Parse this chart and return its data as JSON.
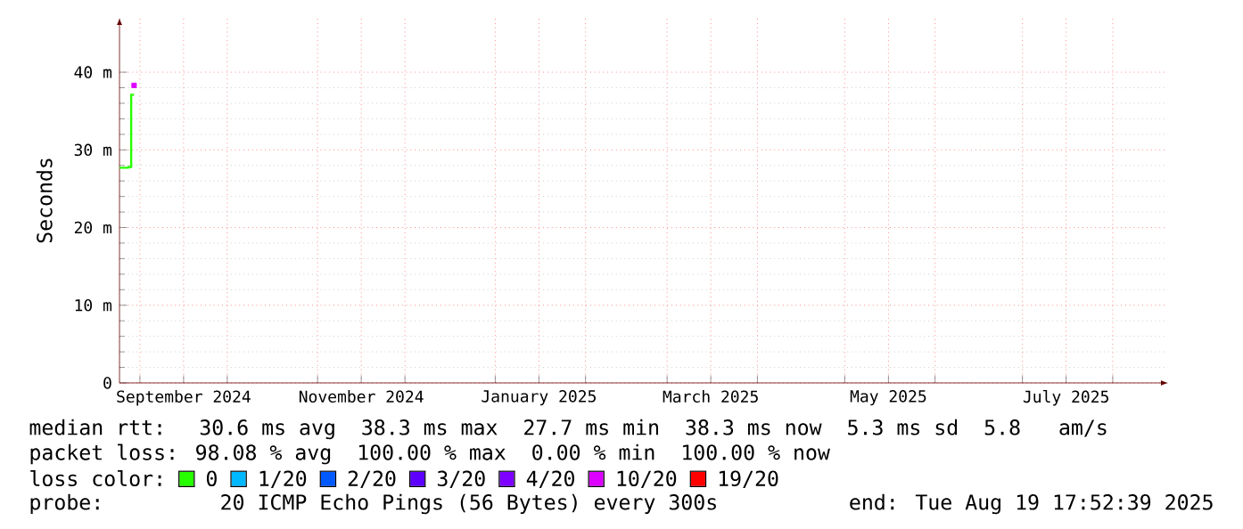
{
  "chart_data": {
    "type": "step",
    "ylabel": "Seconds",
    "legend_title": "loss color:",
    "legend": "bottom",
    "grid": true,
    "xlim": [
      "2024-08-25",
      "2025-08-20"
    ],
    "xticks": [
      {
        "value": "2024-09-01",
        "label": null
      },
      {
        "value": "2024-10-01",
        "label": null
      },
      {
        "value": "2024-11-01",
        "label": null
      },
      {
        "value": "2024-12-01",
        "label": null
      },
      {
        "value": "2025-01-01",
        "label": null
      },
      {
        "value": "2025-02-01",
        "label": null
      },
      {
        "value": "2025-03-01",
        "label": null
      },
      {
        "value": "2025-04-01",
        "label": null
      },
      {
        "value": "2025-05-01",
        "label": null
      },
      {
        "value": "2025-06-01",
        "label": null
      },
      {
        "value": "2025-07-01",
        "label": null
      },
      {
        "value": "2025-08-01",
        "label": null
      },
      {
        "value": "2024-09-16",
        "label": "September 2024"
      },
      {
        "value": "2024-11-16",
        "label": "November 2024"
      },
      {
        "value": "2025-01-16",
        "label": "January 2025"
      },
      {
        "value": "2025-03-16",
        "label": "March 2025"
      },
      {
        "value": "2025-05-16",
        "label": "May 2025"
      },
      {
        "value": "2025-07-16",
        "label": "July 2025"
      }
    ],
    "ylim": [
      0,
      47
    ],
    "yticks": [
      0,
      {
        "value": 10,
        "label": "10 m"
      },
      {
        "value": 20,
        "label": "20 m"
      },
      {
        "value": 30,
        "label": "30 m"
      },
      {
        "value": 40,
        "label": "40 m"
      }
    ],
    "series": [
      {
        "name": "0",
        "color": "#26ff00",
        "x": [
          "2024-08-25",
          "2024-08-28",
          "2024-08-29",
          "2024-08-30"
        ],
        "values": [
          27.7,
          27.8,
          37.1,
          37.1
        ]
      },
      {
        "name": "1/20",
        "color": "#00b8ff"
      },
      {
        "name": "2/20",
        "color": "#0059ff"
      },
      {
        "name": "3/20",
        "color": "#5e00ff"
      },
      {
        "name": "4/20",
        "color": "#7e00ff"
      },
      {
        "name": "10/20",
        "color": "#dd00ff",
        "type": "scatter",
        "marker": "square",
        "x": [
          "2024-08-30"
        ],
        "values": [
          38.3
        ]
      },
      {
        "name": "19/20",
        "color": "#ff0000"
      }
    ],
    "annotations": [
      "median rtt:  30.6 ms avg  38.3 ms max  27.7 ms min  38.3 ms now  5.3 ms sd  5.8   am/s",
      "packet loss: 98.08 % avg  100.00 % max  0.00 % min  100.00 % now",
      "probe:       20 ICMP Echo Pings (56 Bytes) every 300s",
      "end: Tue Aug 19 17:52:39 2025"
    ]
  }
}
